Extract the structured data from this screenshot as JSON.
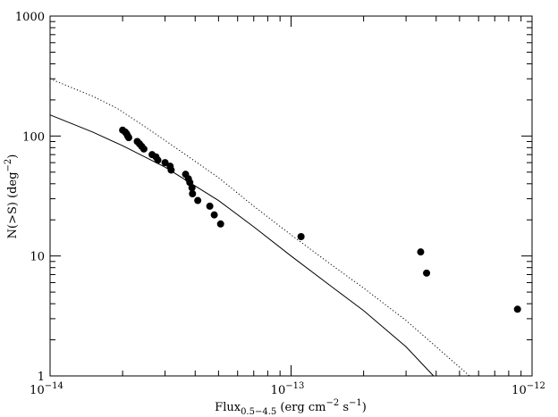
{
  "chart_data": {
    "type": "scatter",
    "title": "",
    "xscale": "log",
    "yscale": "log",
    "xlim": [
      1e-14,
      1e-12
    ],
    "ylim": [
      1,
      1000
    ],
    "xlabel": {
      "base": "Flux",
      "sub": "0.5−4.5",
      "units_pre": " (erg cm",
      "units_sup1": "−2",
      "units_mid": " s",
      "units_sup2": "−1",
      "units_post": ")"
    },
    "ylabel": {
      "pre": "N(>S) (deg",
      "sup": "−2",
      "post": ")"
    },
    "x_ticks": [
      {
        "value": 1e-14,
        "base": "10",
        "exp": "−14"
      },
      {
        "value": 1e-13,
        "base": "10",
        "exp": "−13"
      },
      {
        "value": 1e-12,
        "base": "10",
        "exp": "−12"
      }
    ],
    "y_ticks": [
      {
        "value": 1,
        "label": "1"
      },
      {
        "value": 10,
        "label": "10"
      },
      {
        "value": 100,
        "label": "100"
      },
      {
        "value": 1000,
        "label": "1000"
      }
    ],
    "grid": false,
    "legend": "none",
    "series": [
      {
        "kind": "points",
        "color": "#000000",
        "points": [
          [
            2e-14,
            112
          ],
          [
            2.05e-14,
            108
          ],
          [
            2.08e-14,
            104
          ],
          [
            2.1e-14,
            100
          ],
          [
            2.12e-14,
            97
          ],
          [
            2.3e-14,
            90
          ],
          [
            2.35e-14,
            86
          ],
          [
            2.4e-14,
            82
          ],
          [
            2.45e-14,
            78
          ],
          [
            2.65e-14,
            70
          ],
          [
            2.75e-14,
            67
          ],
          [
            2.8e-14,
            63
          ],
          [
            3e-14,
            60
          ],
          [
            3.15e-14,
            56
          ],
          [
            3.18e-14,
            52
          ],
          [
            3.65e-14,
            48
          ],
          [
            3.75e-14,
            44
          ],
          [
            3.8e-14,
            41
          ],
          [
            3.88e-14,
            37
          ],
          [
            3.9e-14,
            33
          ],
          [
            4.1e-14,
            29
          ],
          [
            4.6e-14,
            26
          ],
          [
            4.8e-14,
            22
          ],
          [
            5.1e-14,
            18.5
          ],
          [
            1.1e-13,
            14.5
          ],
          [
            3.45e-13,
            10.8
          ],
          [
            3.65e-13,
            7.2
          ],
          [
            8.7e-13,
            3.6
          ]
        ]
      },
      {
        "kind": "line",
        "dash": "solid",
        "color": "#000000",
        "points": [
          [
            1e-14,
            150
          ],
          [
            1.5e-14,
            108
          ],
          [
            2e-14,
            83
          ],
          [
            3e-14,
            55
          ],
          [
            5e-14,
            29
          ],
          [
            7e-14,
            17.5
          ],
          [
            1e-13,
            10
          ],
          [
            1.5e-13,
            5.4
          ],
          [
            2e-13,
            3.5
          ],
          [
            3e-13,
            1.75
          ],
          [
            3.9e-13,
            1
          ]
        ]
      },
      {
        "kind": "line",
        "dash": "dotted",
        "color": "#000000",
        "points": [
          [
            1e-14,
            300
          ],
          [
            1.5e-14,
            215
          ],
          [
            1.9e-14,
            170
          ],
          [
            2.5e-14,
            118
          ],
          [
            3e-14,
            92
          ],
          [
            5e-14,
            45
          ],
          [
            7e-14,
            26
          ],
          [
            1e-13,
            15
          ],
          [
            1.5e-13,
            8.2
          ],
          [
            2e-13,
            5.4
          ],
          [
            3e-13,
            2.9
          ],
          [
            4e-13,
            1.75
          ],
          [
            5.5e-13,
            1
          ]
        ]
      }
    ]
  }
}
